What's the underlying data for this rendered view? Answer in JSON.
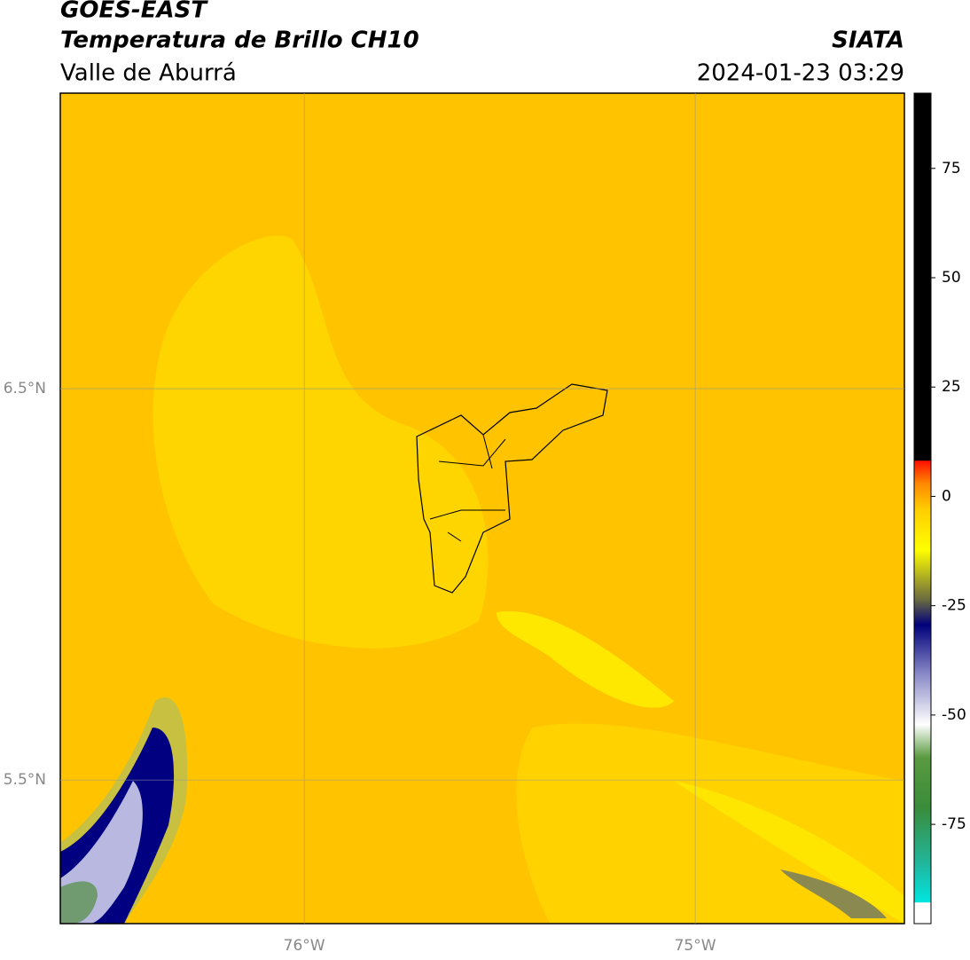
{
  "header": {
    "title": "GOES-EAST",
    "subtitle": "Temperatura de Brillo CH10",
    "source": "SIATA",
    "region": "Valle de Aburrá",
    "timestamp": "2024-01-23 03:29"
  },
  "map": {
    "xlim": [
      -76.624,
      -74.465
    ],
    "ylim": [
      5.133,
      7.255
    ],
    "xticks": [
      {
        "value": -76,
        "label": "76°W"
      },
      {
        "value": -75,
        "label": "75°W"
      }
    ],
    "yticks": [
      {
        "value": 6.5,
        "label": "6.5°N"
      },
      {
        "value": 5.5,
        "label": "5.5°N"
      }
    ],
    "grid": true
  },
  "colorbar": {
    "lim": [
      -97.7,
      92.2
    ],
    "ticks": [
      75,
      50,
      25,
      0,
      -25,
      -50,
      -75
    ]
  }
}
